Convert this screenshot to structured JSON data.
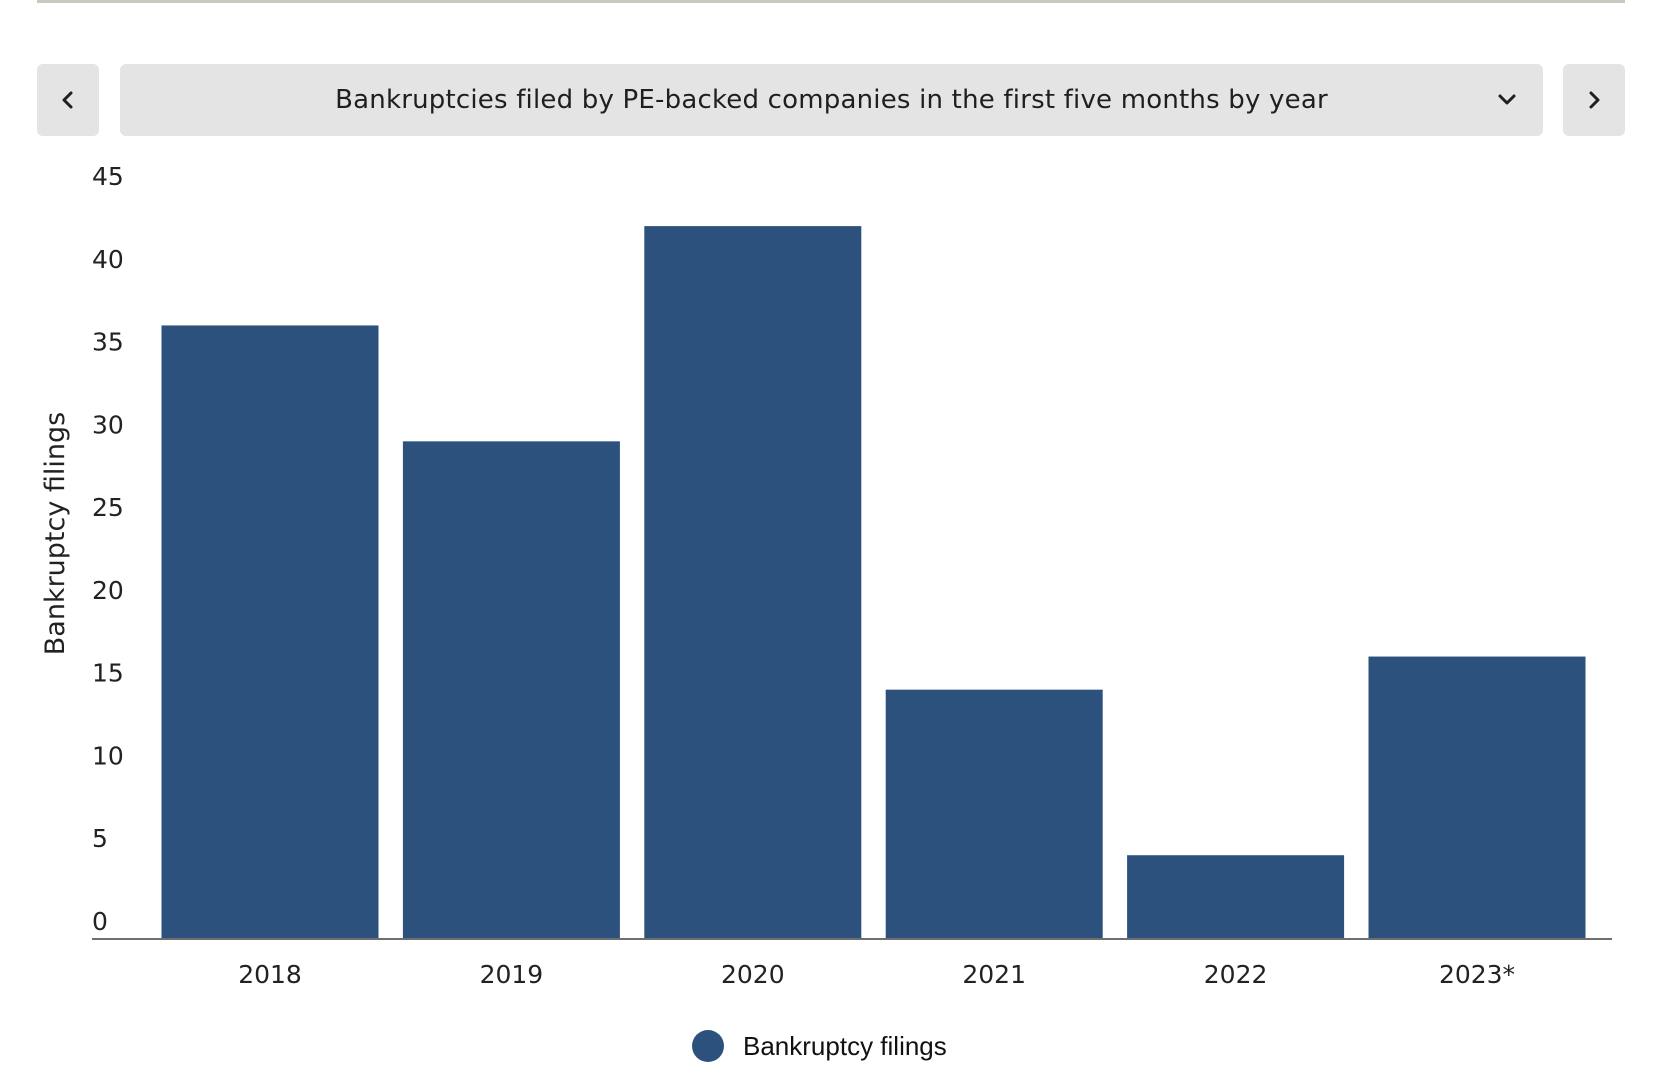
{
  "selector": {
    "title": "Bankruptcies filed by PE-backed companies in the first five months by year",
    "prev_icon": "chevron-left-icon",
    "next_icon": "chevron-right-icon",
    "dropdown_icon": "chevron-down-icon"
  },
  "colors": {
    "bar": "#2c517c",
    "axis": "#6f6f6f",
    "button_bg": "#e4e4e4",
    "top_rule": "#c9c9bf"
  },
  "chart_data": {
    "type": "bar",
    "categories": [
      "2018",
      "2019",
      "2020",
      "2021",
      "2022",
      "2023*"
    ],
    "series": [
      {
        "name": "Bankruptcy filings",
        "values": [
          37,
          30,
          43,
          15,
          5,
          17
        ]
      }
    ],
    "ylabel": "Bankruptcy filings",
    "xlabel": "",
    "ylim": [
      0,
      45
    ],
    "yticks": [
      0,
      5,
      10,
      15,
      20,
      25,
      30,
      35,
      40,
      45
    ],
    "grid": false,
    "legend_position": "bottom-center"
  }
}
